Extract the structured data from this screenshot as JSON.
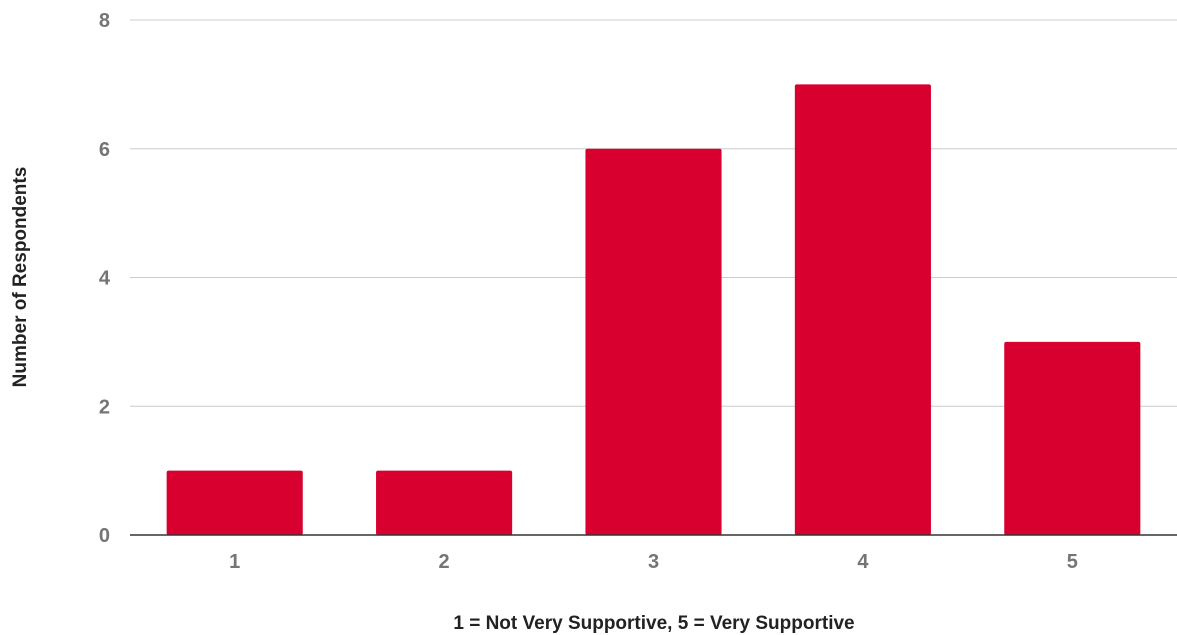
{
  "chart_data": {
    "type": "bar",
    "title": "",
    "xlabel": "1 = Not Very Supportive, 5 = Very Supportive",
    "ylabel": "Number of Respondents",
    "categories": [
      "1",
      "2",
      "3",
      "4",
      "5"
    ],
    "values": [
      1,
      1,
      6,
      7,
      3
    ],
    "ylim": [
      0,
      8
    ],
    "yticks": [
      "0",
      "2",
      "4",
      "6",
      "8"
    ],
    "grid": true,
    "bar_color": "#d7002f"
  }
}
